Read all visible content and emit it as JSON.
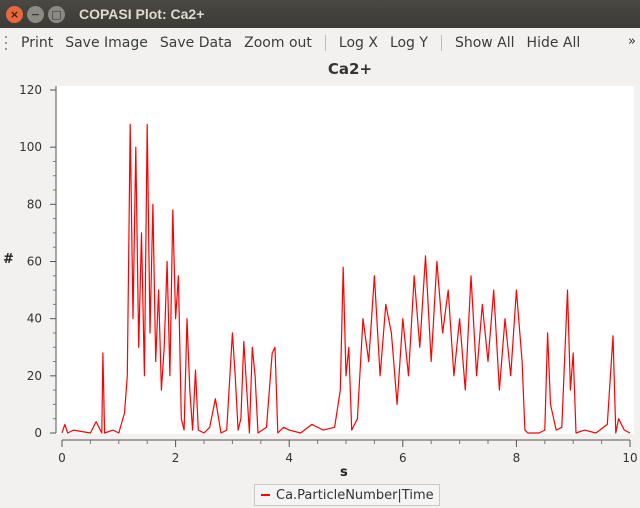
{
  "window": {
    "title": "COPASI Plot: Ca2+"
  },
  "toolbar": {
    "print": "Print",
    "save_image": "Save Image",
    "save_data": "Save Data",
    "zoom_out": "Zoom out",
    "log_x": "Log X",
    "log_y": "Log Y",
    "show_all": "Show All",
    "hide_all": "Hide All",
    "overflow": "»"
  },
  "chart_data": {
    "type": "line",
    "title": "Ca2+",
    "xlabel": "s",
    "ylabel": "#",
    "xlim": [
      0,
      10
    ],
    "ylim": [
      0,
      120
    ],
    "xticks": [
      0,
      2,
      4,
      6,
      8,
      10
    ],
    "yticks": [
      0,
      20,
      40,
      60,
      80,
      100,
      120
    ],
    "grid": false,
    "legend_position": "bottom-center",
    "series": [
      {
        "name": "Ca.ParticleNumber|Time",
        "color": "#ff0000",
        "x": [
          0,
          0.05,
          0.1,
          0.2,
          0.5,
          0.6,
          0.7,
          0.72,
          0.75,
          0.9,
          1.0,
          1.1,
          1.15,
          1.2,
          1.25,
          1.3,
          1.35,
          1.4,
          1.45,
          1.5,
          1.55,
          1.6,
          1.65,
          1.7,
          1.75,
          1.8,
          1.85,
          1.9,
          1.95,
          2.0,
          2.05,
          2.1,
          2.15,
          2.2,
          2.25,
          2.3,
          2.35,
          2.4,
          2.5,
          2.6,
          2.7,
          2.8,
          2.9,
          3.0,
          3.05,
          3.1,
          3.15,
          3.2,
          3.3,
          3.35,
          3.4,
          3.45,
          3.6,
          3.7,
          3.75,
          3.8,
          3.9,
          4.0,
          4.2,
          4.4,
          4.6,
          4.8,
          4.9,
          4.95,
          5.0,
          5.05,
          5.1,
          5.2,
          5.3,
          5.4,
          5.5,
          5.6,
          5.7,
          5.8,
          5.9,
          6.0,
          6.1,
          6.2,
          6.3,
          6.4,
          6.5,
          6.6,
          6.7,
          6.8,
          6.9,
          7.0,
          7.1,
          7.2,
          7.3,
          7.4,
          7.5,
          7.6,
          7.7,
          7.8,
          7.9,
          8.0,
          8.1,
          8.15,
          8.2,
          8.4,
          8.5,
          8.55,
          8.6,
          8.7,
          8.8,
          8.9,
          8.95,
          9.0,
          9.05,
          9.2,
          9.4,
          9.6,
          9.7,
          9.75,
          9.8,
          9.9,
          10.0
        ],
        "y": [
          0,
          3,
          0,
          1,
          0,
          4,
          0,
          28,
          0,
          1,
          0,
          7,
          20,
          108,
          40,
          100,
          30,
          70,
          20,
          108,
          35,
          80,
          25,
          50,
          15,
          30,
          60,
          20,
          78,
          40,
          55,
          5,
          1,
          40,
          15,
          1,
          22,
          1,
          0,
          2,
          12,
          0,
          1,
          35,
          20,
          1,
          5,
          32,
          0,
          30,
          20,
          0,
          2,
          28,
          30,
          0,
          2,
          1,
          0,
          3,
          1,
          2,
          15,
          58,
          20,
          30,
          1,
          5,
          40,
          25,
          55,
          20,
          45,
          35,
          10,
          40,
          20,
          55,
          30,
          62,
          25,
          60,
          35,
          50,
          20,
          40,
          15,
          55,
          20,
          45,
          25,
          50,
          15,
          40,
          20,
          50,
          25,
          1,
          0,
          0,
          1,
          35,
          10,
          1,
          2,
          50,
          15,
          28,
          0,
          1,
          0,
          3,
          34,
          0,
          5,
          1,
          0
        ]
      }
    ]
  }
}
